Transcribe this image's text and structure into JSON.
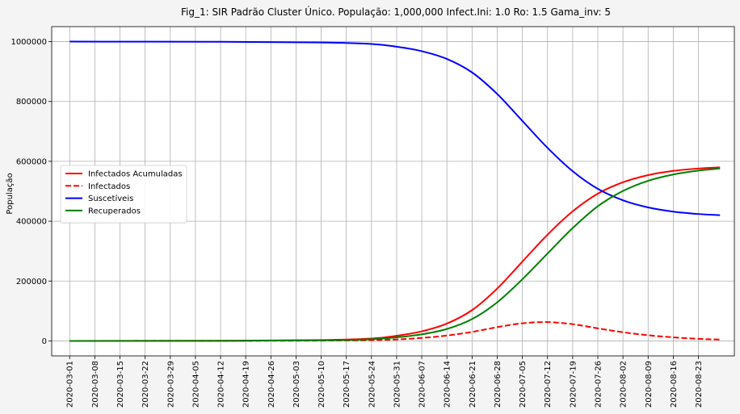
{
  "chart_data": {
    "type": "line",
    "title": "Fig_1: SIR Padrão Cluster Único. População: 1,000,000 Infect.Ini: 1.0     Ro: 1.5 Gama_inv: 5",
    "xlabel": "",
    "ylabel": "População",
    "x_start": "2020-03-01",
    "x_end": "2020-08-29",
    "xlim": [
      "2020-02-25",
      "2020-09-02"
    ],
    "ylim": [
      -50000,
      1050000
    ],
    "grid": true,
    "legend_position": "center-left",
    "x_tick_labels": [
      "2020-03-01",
      "2020-03-08",
      "2020-03-15",
      "2020-03-22",
      "2020-03-29",
      "2020-04-05",
      "2020-04-12",
      "2020-04-19",
      "2020-04-26",
      "2020-05-03",
      "2020-05-10",
      "2020-05-17",
      "2020-05-24",
      "2020-05-31",
      "2020-06-07",
      "2020-06-14",
      "2020-06-21",
      "2020-06-28",
      "2020-07-05",
      "2020-07-12",
      "2020-07-19",
      "2020-07-26",
      "2020-08-02",
      "2020-08-09",
      "2020-08-16",
      "2020-08-23"
    ],
    "y_ticks": [
      0,
      200000,
      400000,
      600000,
      800000,
      1000000
    ],
    "y_tick_labels": [
      "0",
      "200000",
      "400000",
      "600000",
      "800000",
      "1000000"
    ],
    "x_dates": [
      "2020-03-01",
      "2020-04-12",
      "2020-05-10",
      "2020-05-24",
      "2020-05-31",
      "2020-06-07",
      "2020-06-14",
      "2020-06-21",
      "2020-06-28",
      "2020-07-05",
      "2020-07-12",
      "2020-07-19",
      "2020-07-26",
      "2020-08-02",
      "2020-08-09",
      "2020-08-16",
      "2020-08-23",
      "2020-08-29"
    ],
    "series": [
      {
        "name": "Infectados Acumuladas",
        "color": "#ff0000",
        "style": "solid",
        "values": [
          0,
          500,
          3000,
          8000,
          17000,
          32000,
          58000,
          103000,
          175000,
          265000,
          355000,
          433000,
          492000,
          530000,
          554000,
          568000,
          576000,
          580000
        ]
      },
      {
        "name": "Infectados",
        "color": "#ff0000",
        "style": "dashed",
        "values": [
          0,
          200,
          1000,
          2500,
          5000,
          10000,
          18000,
          30000,
          46000,
          59000,
          63000,
          56000,
          42000,
          29000,
          19000,
          12000,
          7000,
          4500
        ]
      },
      {
        "name": "Suscetíveis",
        "color": "#0000ff",
        "style": "solid",
        "values": [
          1000000,
          999500,
          997000,
          992000,
          983000,
          968000,
          942000,
          897000,
          825000,
          735000,
          645000,
          567000,
          508000,
          470000,
          446000,
          432000,
          424000,
          420000
        ]
      },
      {
        "name": "Recuperados",
        "color": "#008000",
        "style": "solid",
        "values": [
          0,
          300,
          2000,
          5500,
          12000,
          22000,
          40000,
          73000,
          129000,
          206000,
          292000,
          377000,
          450000,
          501000,
          535000,
          556000,
          569000,
          576000
        ]
      }
    ]
  }
}
